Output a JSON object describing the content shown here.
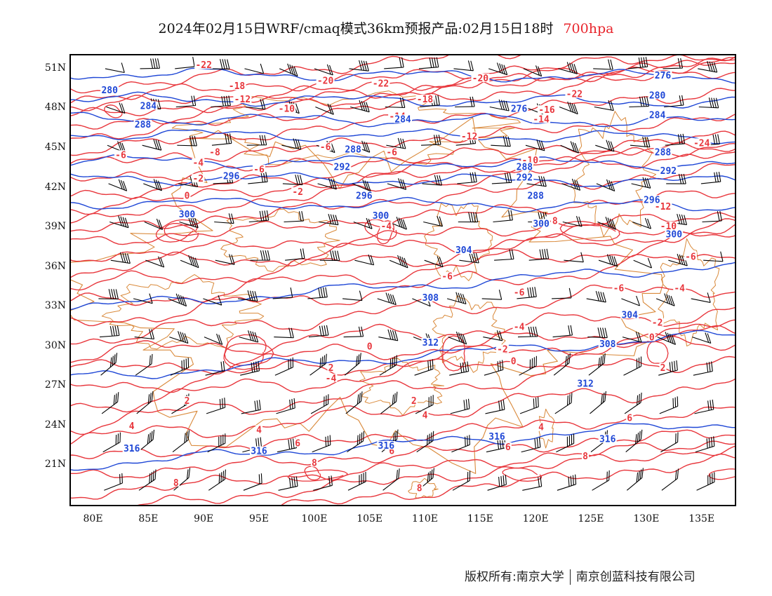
{
  "title": {
    "main": "2024年02月15日WRF/cmaq模式36km预报产品:02月15日18时",
    "level": "700hpa"
  },
  "colors": {
    "temperature_contour": "#e8363c",
    "geopotential_contour": "#1f47d6",
    "boundary": "#d9893a",
    "wind_barb": "#000000",
    "level_text": "#e8242b"
  },
  "axes": {
    "lat_ticks": [
      "51N",
      "48N",
      "45N",
      "42N",
      "39N",
      "36N",
      "33N",
      "30N",
      "27N",
      "24N",
      "21N"
    ],
    "lat_values": [
      51,
      48,
      45,
      42,
      39,
      36,
      33,
      30,
      27,
      24,
      21
    ],
    "lon_ticks": [
      "80E",
      "85E",
      "90E",
      "95E",
      "100E",
      "105E",
      "110E",
      "115E",
      "120E",
      "125E",
      "130E",
      "135E"
    ],
    "lon_values": [
      80,
      85,
      90,
      95,
      100,
      105,
      110,
      115,
      120,
      125,
      130,
      135
    ],
    "lon_range": [
      78,
      138
    ],
    "lat_range": [
      18,
      52
    ]
  },
  "footer": {
    "left": "版权所有:南京大学",
    "right": "南京创蓝科技有限公司"
  },
  "chart_data": {
    "type": "map",
    "fields": [
      "temperature (red contours)",
      "geopotential height (blue contours)",
      "wind barbs"
    ],
    "temperature_labels": [
      {
        "text": "-22",
        "lon": 90,
        "lat": 51.2
      },
      {
        "text": "-20",
        "lon": 101,
        "lat": 50
      },
      {
        "text": "-22",
        "lon": 106,
        "lat": 49.8
      },
      {
        "text": "-20",
        "lon": 115,
        "lat": 50.2
      },
      {
        "text": "-18",
        "lon": 93,
        "lat": 49.6
      },
      {
        "text": "-12",
        "lon": 93.5,
        "lat": 48.6
      },
      {
        "text": "-10",
        "lon": 97.5,
        "lat": 47.9
      },
      {
        "text": "-18",
        "lon": 110,
        "lat": 48.6
      },
      {
        "text": "-14",
        "lon": 107.5,
        "lat": 47.3
      },
      {
        "text": "-22",
        "lon": 123.5,
        "lat": 49
      },
      {
        "text": "-16",
        "lon": 121,
        "lat": 47.8
      },
      {
        "text": "-14",
        "lon": 120.5,
        "lat": 47.1
      },
      {
        "text": "-12",
        "lon": 114,
        "lat": 45.8
      },
      {
        "text": "-24",
        "lon": 135,
        "lat": 45.3
      },
      {
        "text": "-6",
        "lon": 82.5,
        "lat": 44.4
      },
      {
        "text": "-8",
        "lon": 91,
        "lat": 44.6
      },
      {
        "text": "-6",
        "lon": 101,
        "lat": 45
      },
      {
        "text": "-6",
        "lon": 107,
        "lat": 44.6
      },
      {
        "text": "-10",
        "lon": 119.5,
        "lat": 44
      },
      {
        "text": "-4",
        "lon": 89.5,
        "lat": 43.8
      },
      {
        "text": "-6",
        "lon": 95,
        "lat": 43.3
      },
      {
        "text": "-2",
        "lon": 89.5,
        "lat": 42.6
      },
      {
        "text": "0",
        "lon": 88.5,
        "lat": 41.3
      },
      {
        "text": "-2",
        "lon": 98.5,
        "lat": 41.6
      },
      {
        "text": "-4",
        "lon": 106.5,
        "lat": 39
      },
      {
        "text": "-8",
        "lon": 121.5,
        "lat": 39.4
      },
      {
        "text": "-12",
        "lon": 131.5,
        "lat": 40.5
      },
      {
        "text": "-10",
        "lon": 132,
        "lat": 39
      },
      {
        "text": "-6",
        "lon": 134,
        "lat": 36.7
      },
      {
        "text": "-6",
        "lon": 112,
        "lat": 35.2
      },
      {
        "text": "-6",
        "lon": 118.5,
        "lat": 34
      },
      {
        "text": "-6",
        "lon": 127.5,
        "lat": 34.3
      },
      {
        "text": "-4",
        "lon": 133,
        "lat": 34.3
      },
      {
        "text": "-4",
        "lon": 118.5,
        "lat": 31.4
      },
      {
        "text": "-2",
        "lon": 131,
        "lat": 31.7
      },
      {
        "text": "0",
        "lon": 130.5,
        "lat": 30.6
      },
      {
        "text": "0",
        "lon": 105,
        "lat": 29.9
      },
      {
        "text": "-2",
        "lon": 117,
        "lat": 29.7
      },
      {
        "text": "0",
        "lon": 118,
        "lat": 28.8
      },
      {
        "text": "2",
        "lon": 101.5,
        "lat": 28.3
      },
      {
        "text": "-4",
        "lon": 101.5,
        "lat": 27.5
      },
      {
        "text": "2",
        "lon": 131.5,
        "lat": 28.3
      },
      {
        "text": "2",
        "lon": 109,
        "lat": 25.8
      },
      {
        "text": "4",
        "lon": 110,
        "lat": 24.7
      },
      {
        "text": "2",
        "lon": 88.5,
        "lat": 25.8
      },
      {
        "text": "4",
        "lon": 95,
        "lat": 23.6
      },
      {
        "text": "6",
        "lon": 98.5,
        "lat": 22.6
      },
      {
        "text": "4",
        "lon": 83.5,
        "lat": 23.9
      },
      {
        "text": "4",
        "lon": 120.5,
        "lat": 23.8
      },
      {
        "text": "6",
        "lon": 128.5,
        "lat": 24.5
      },
      {
        "text": "6",
        "lon": 107,
        "lat": 22
      },
      {
        "text": "6",
        "lon": 117.5,
        "lat": 22.3
      },
      {
        "text": "8",
        "lon": 124.5,
        "lat": 21.6
      },
      {
        "text": "8",
        "lon": 100,
        "lat": 21.1
      },
      {
        "text": "8",
        "lon": 87.5,
        "lat": 19.6
      },
      {
        "text": "8",
        "lon": 109.5,
        "lat": 19.2
      }
    ],
    "geopotential_labels": [
      {
        "text": "276",
        "lon": 131.5,
        "lat": 50.4
      },
      {
        "text": "280",
        "lon": 81.5,
        "lat": 49.3
      },
      {
        "text": "280",
        "lon": 131,
        "lat": 48.9
      },
      {
        "text": "284",
        "lon": 85,
        "lat": 48.1
      },
      {
        "text": "276",
        "lon": 118.5,
        "lat": 47.9
      },
      {
        "text": "284",
        "lon": 108,
        "lat": 47.1
      },
      {
        "text": "284",
        "lon": 131,
        "lat": 47.4
      },
      {
        "text": "288",
        "lon": 84.5,
        "lat": 46.7
      },
      {
        "text": "288",
        "lon": 103.5,
        "lat": 44.8
      },
      {
        "text": "288",
        "lon": 131.5,
        "lat": 44.6
      },
      {
        "text": "292",
        "lon": 102.5,
        "lat": 43.5
      },
      {
        "text": "288",
        "lon": 119,
        "lat": 43.5
      },
      {
        "text": "292",
        "lon": 119,
        "lat": 42.7
      },
      {
        "text": "292",
        "lon": 132,
        "lat": 43.2
      },
      {
        "text": "296",
        "lon": 92.5,
        "lat": 42.8
      },
      {
        "text": "296",
        "lon": 104.5,
        "lat": 41.3
      },
      {
        "text": "296",
        "lon": 130.5,
        "lat": 41
      },
      {
        "text": "288",
        "lon": 120,
        "lat": 41.3
      },
      {
        "text": "300",
        "lon": 88.5,
        "lat": 39.9
      },
      {
        "text": "300",
        "lon": 106,
        "lat": 39.8
      },
      {
        "text": "300",
        "lon": 120.5,
        "lat": 39.2
      },
      {
        "text": "300",
        "lon": 132.5,
        "lat": 38.4
      },
      {
        "text": "304",
        "lon": 113.5,
        "lat": 37.2
      },
      {
        "text": "308",
        "lon": 110.5,
        "lat": 33.6
      },
      {
        "text": "304",
        "lon": 128.5,
        "lat": 32.3
      },
      {
        "text": "312",
        "lon": 110.5,
        "lat": 30.2
      },
      {
        "text": "308",
        "lon": 126.5,
        "lat": 30.1
      },
      {
        "text": "312",
        "lon": 124.5,
        "lat": 27.1
      },
      {
        "text": "316",
        "lon": 83.5,
        "lat": 22.2
      },
      {
        "text": "316",
        "lon": 95,
        "lat": 22
      },
      {
        "text": "316",
        "lon": 106.5,
        "lat": 22.4
      },
      {
        "text": "316",
        "lon": 116.5,
        "lat": 23.1
      },
      {
        "text": "316",
        "lon": 126.5,
        "lat": 22.9
      }
    ]
  }
}
